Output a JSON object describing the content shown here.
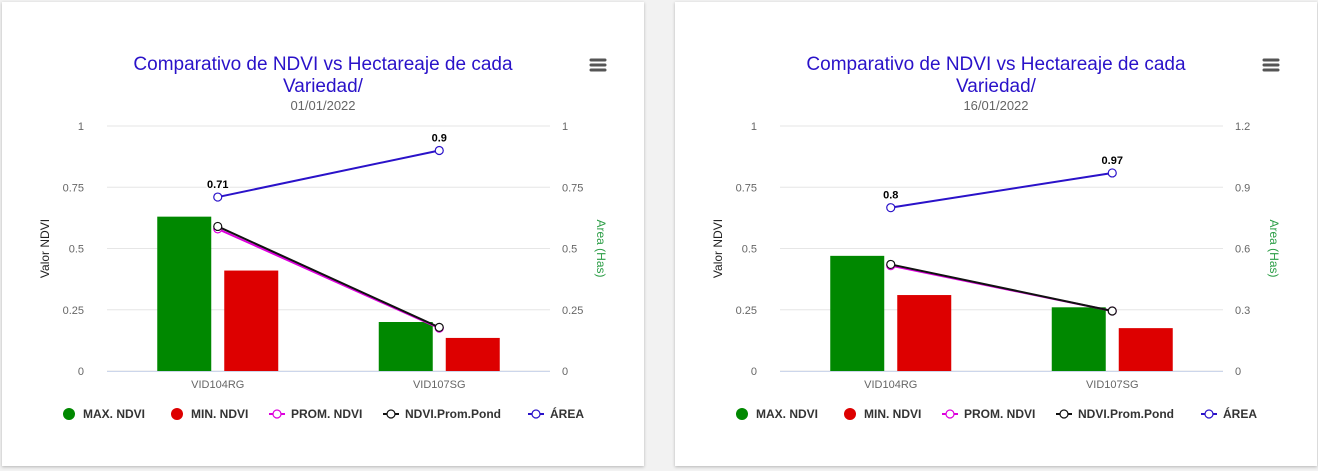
{
  "colors": {
    "max": "#008800",
    "min": "#dd0000",
    "prom": "#dd00dd",
    "pond": "#111111",
    "area": "#2a12c9"
  },
  "icons": {
    "menu": "hamburger-menu-icon"
  },
  "chart_data": [
    {
      "type": "bar",
      "title": [
        "Comparativo de NDVI vs Hectareaje de cada",
        "Variedad/"
      ],
      "subtitle": "01/01/2022",
      "ylabel": "Valor NDVI",
      "y2label": "Area (Has)",
      "categories": [
        "VID104RG",
        "VID107SG"
      ],
      "ylim": [
        0,
        1
      ],
      "y_ticks": [
        "0",
        "0.25",
        "0.5",
        "0.75",
        "1"
      ],
      "y2lim": [
        0,
        1
      ],
      "y2_ticks": [
        "0",
        "0.25",
        "0.5",
        "0.75",
        "1"
      ],
      "series": [
        {
          "name": "MAX. NDVI",
          "type": "bar",
          "values": [
            0.63,
            0.2
          ]
        },
        {
          "name": "MIN. NDVI",
          "type": "bar",
          "values": [
            0.41,
            0.135
          ]
        },
        {
          "name": "PROM. NDVI",
          "type": "line",
          "values": [
            0.58,
            0.175
          ]
        },
        {
          "name": "NDVI.Prom.Pond",
          "type": "line",
          "values": [
            0.59,
            0.178
          ]
        },
        {
          "name": "ÁREA",
          "type": "line",
          "axis": "right",
          "values": [
            0.71,
            0.9
          ],
          "labels": [
            "0.71",
            "0.9"
          ]
        }
      ],
      "legend": [
        "MAX. NDVI",
        "MIN. NDVI",
        "PROM. NDVI",
        "NDVI.Prom.Pond",
        "ÁREA"
      ]
    },
    {
      "type": "bar",
      "title": [
        "Comparativo de NDVI vs Hectareaje de cada",
        "Variedad/"
      ],
      "subtitle": "16/01/2022",
      "ylabel": "Valor NDVI",
      "y2label": "Area (Has)",
      "categories": [
        "VID104RG",
        "VID107SG"
      ],
      "ylim": [
        0,
        1
      ],
      "y_ticks": [
        "0",
        "0.25",
        "0.5",
        "0.75",
        "1"
      ],
      "y2lim": [
        0,
        1.2
      ],
      "y2_ticks": [
        "0",
        "0.3",
        "0.6",
        "0.9",
        "1.2"
      ],
      "series": [
        {
          "name": "MAX. NDVI",
          "type": "bar",
          "values": [
            0.47,
            0.26
          ]
        },
        {
          "name": "MIN. NDVI",
          "type": "bar",
          "values": [
            0.31,
            0.175
          ]
        },
        {
          "name": "PROM. NDVI",
          "type": "line",
          "values": [
            0.43,
            0.245
          ]
        },
        {
          "name": "NDVI.Prom.Pond",
          "type": "line",
          "values": [
            0.435,
            0.245
          ]
        },
        {
          "name": "ÁREA",
          "type": "line",
          "axis": "right",
          "values": [
            0.8,
            0.97
          ],
          "labels": [
            "0.8",
            "0.97"
          ]
        }
      ],
      "legend": [
        "MAX. NDVI",
        "MIN. NDVI",
        "PROM. NDVI",
        "NDVI.Prom.Pond",
        "ÁREA"
      ]
    }
  ]
}
